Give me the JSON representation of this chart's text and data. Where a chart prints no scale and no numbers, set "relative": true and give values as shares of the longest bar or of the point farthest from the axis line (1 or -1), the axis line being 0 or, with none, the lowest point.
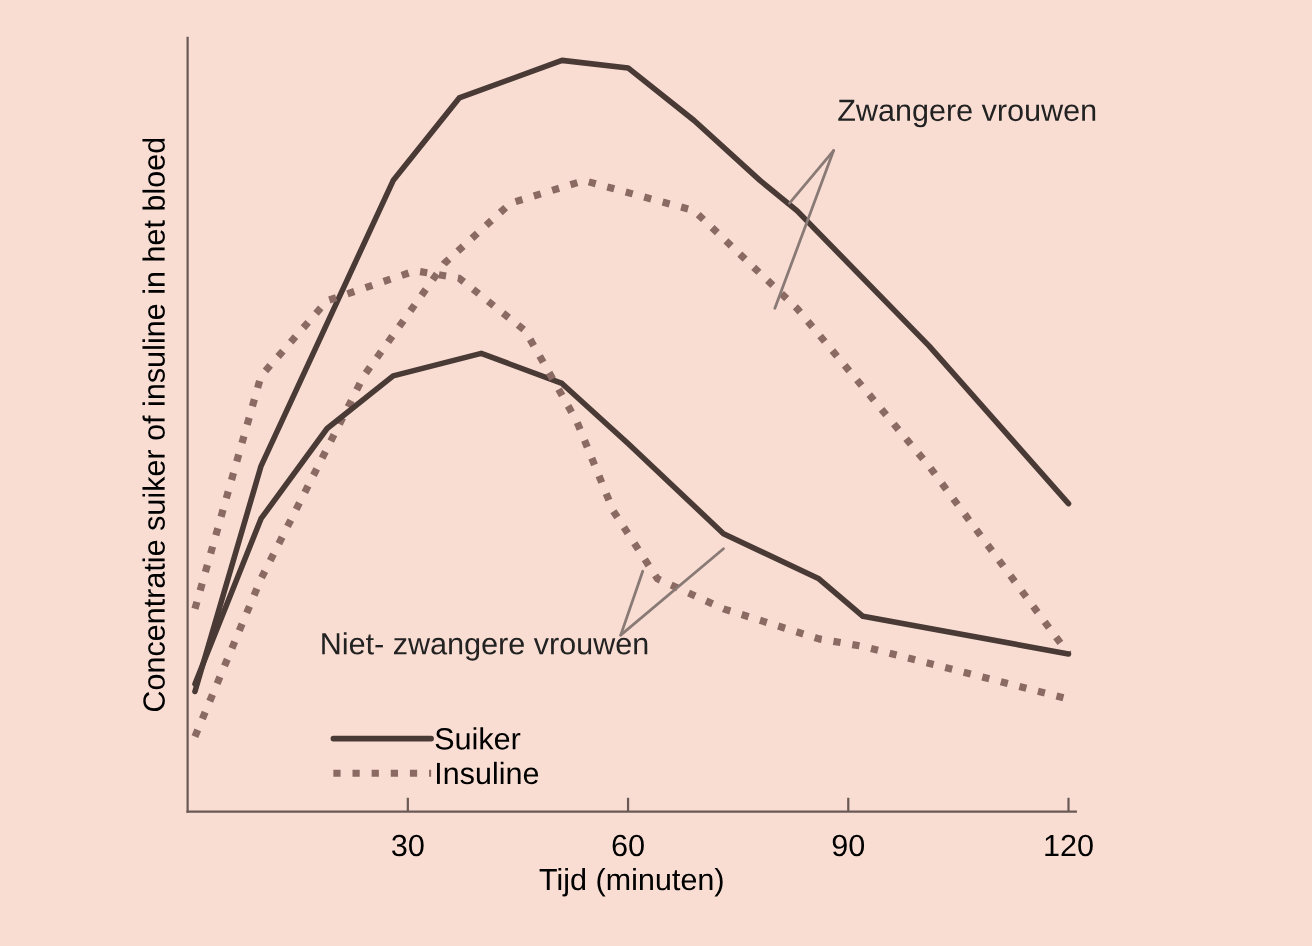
{
  "chart_data": {
    "type": "line",
    "relative": true,
    "xlabel": "Tijd (minuten)",
    "ylabel": "Concentratie suiker of insuline in het bloed",
    "xlim": [
      0,
      121
    ],
    "xticks": [
      30,
      60,
      90,
      120
    ],
    "legend": "bottom left",
    "grid": false,
    "marker": "none",
    "annotations": [
      "Zwangere vrouwen",
      "Niet- zwangere vrouwen"
    ],
    "series": [
      {
        "name": "Suiker",
        "color": "#4a3a36",
        "line_style": "solid",
        "x": [
          1,
          10,
          19,
          28,
          37,
          51,
          60,
          69,
          78,
          83,
          101,
          120
        ],
        "values": [
          0.16,
          0.46,
          0.65,
          0.84,
          0.95,
          1.0,
          0.99,
          0.92,
          0.84,
          0.8,
          0.62,
          0.41
        ]
      },
      {
        "name": "Insuline",
        "color": "#8a6a62",
        "line_style": "dotted",
        "x": [
          1,
          10,
          24,
          35,
          44,
          54,
          69,
          83,
          101,
          120
        ],
        "values": [
          0.1,
          0.31,
          0.58,
          0.73,
          0.81,
          0.84,
          0.8,
          0.67,
          0.46,
          0.21
        ]
      },
      {
        "color": "#4a3a36",
        "line_style": "solid",
        "x": [
          1,
          10,
          19,
          28,
          40,
          51,
          60,
          73,
          86,
          92,
          120
        ],
        "values": [
          0.17,
          0.39,
          0.51,
          0.58,
          0.61,
          0.57,
          0.49,
          0.37,
          0.31,
          0.26,
          0.21
        ]
      },
      {
        "color": "#8a6a62",
        "line_style": "dotted",
        "x": [
          1,
          10,
          19,
          31,
          37,
          46,
          53,
          58,
          64,
          73,
          86,
          92,
          120
        ],
        "values": [
          0.27,
          0.58,
          0.68,
          0.72,
          0.71,
          0.64,
          0.52,
          0.4,
          0.31,
          0.27,
          0.23,
          0.22,
          0.15
        ]
      }
    ]
  }
}
